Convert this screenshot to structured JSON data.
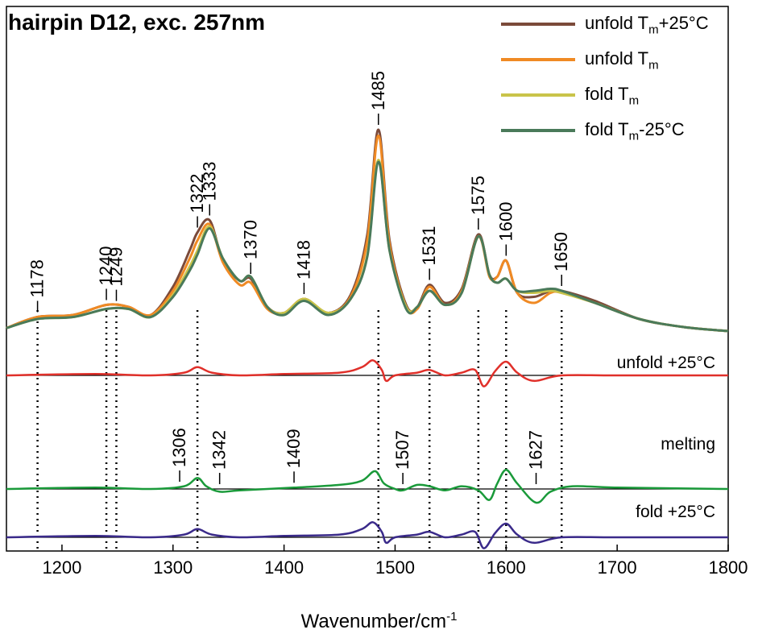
{
  "chart_data": {
    "type": "line",
    "title": "hairpin D12, exc. 257nm",
    "xlabel": "Wavenumber/cm",
    "xlabel_sup": "-1",
    "ylabel": "",
    "xlim": [
      1150,
      1800
    ],
    "xticks": [
      1200,
      1300,
      1400,
      1500,
      1600,
      1700,
      1800
    ],
    "legend_position": "top-right",
    "legend": [
      {
        "label": "unfold T",
        "sub": "m",
        "suffix": "+25°C",
        "color": "#7b4a3a"
      },
      {
        "label": "unfold T",
        "sub": "m",
        "suffix": "",
        "color": "#f08a24"
      },
      {
        "label": "fold T",
        "sub": "m",
        "suffix": "",
        "color": "#c9c44a"
      },
      {
        "label": "fold T",
        "sub": "m",
        "suffix": "-25°C",
        "color": "#4a7a5a"
      }
    ],
    "trace_labels": [
      "unfold +25°C",
      "melting",
      "fold +25°C"
    ],
    "main_series": [
      {
        "name": "unfold Tm+25°C",
        "color": "#7b4a3a",
        "x": [
          1150,
          1178,
          1210,
          1240,
          1260,
          1280,
          1300,
          1315,
          1322,
          1333,
          1345,
          1360,
          1370,
          1385,
          1400,
          1418,
          1440,
          1460,
          1475,
          1485,
          1495,
          1510,
          1520,
          1531,
          1545,
          1560,
          1575,
          1585,
          1592,
          1600,
          1610,
          1625,
          1640,
          1650,
          1680,
          1720,
          1760,
          1800
        ],
        "y": [
          0.015,
          0.07,
          0.08,
          0.13,
          0.12,
          0.08,
          0.22,
          0.4,
          0.49,
          0.55,
          0.35,
          0.25,
          0.26,
          0.12,
          0.09,
          0.16,
          0.09,
          0.18,
          0.48,
          1.0,
          0.45,
          0.13,
          0.12,
          0.23,
          0.14,
          0.21,
          0.48,
          0.28,
          0.27,
          0.35,
          0.19,
          0.17,
          0.2,
          0.2,
          0.15,
          0.06,
          0.02,
          0.0
        ]
      },
      {
        "name": "unfold Tm",
        "color": "#f08a24",
        "x": [
          1150,
          1178,
          1210,
          1240,
          1260,
          1280,
          1300,
          1315,
          1322,
          1333,
          1345,
          1360,
          1370,
          1385,
          1400,
          1418,
          1440,
          1460,
          1475,
          1485,
          1495,
          1510,
          1520,
          1531,
          1545,
          1560,
          1575,
          1585,
          1592,
          1600,
          1610,
          1625,
          1640,
          1650,
          1680,
          1720,
          1760,
          1800
        ],
        "y": [
          0.015,
          0.07,
          0.08,
          0.13,
          0.12,
          0.08,
          0.2,
          0.36,
          0.45,
          0.53,
          0.34,
          0.23,
          0.24,
          0.11,
          0.09,
          0.16,
          0.09,
          0.17,
          0.45,
          0.97,
          0.43,
          0.12,
          0.11,
          0.22,
          0.13,
          0.2,
          0.47,
          0.27,
          0.27,
          0.35,
          0.19,
          0.14,
          0.19,
          0.19,
          0.14,
          0.06,
          0.02,
          0.0
        ]
      },
      {
        "name": "fold Tm",
        "color": "#c9c44a",
        "x": [
          1150,
          1178,
          1210,
          1240,
          1260,
          1280,
          1300,
          1315,
          1322,
          1333,
          1345,
          1360,
          1370,
          1385,
          1400,
          1418,
          1440,
          1460,
          1475,
          1485,
          1495,
          1510,
          1520,
          1531,
          1545,
          1560,
          1575,
          1585,
          1592,
          1600,
          1610,
          1625,
          1640,
          1650,
          1680,
          1720,
          1760,
          1800
        ],
        "y": [
          0.015,
          0.06,
          0.07,
          0.11,
          0.11,
          0.07,
          0.18,
          0.32,
          0.4,
          0.52,
          0.36,
          0.25,
          0.27,
          0.12,
          0.09,
          0.16,
          0.09,
          0.16,
          0.38,
          0.85,
          0.4,
          0.12,
          0.12,
          0.2,
          0.13,
          0.19,
          0.47,
          0.28,
          0.24,
          0.26,
          0.2,
          0.19,
          0.2,
          0.19,
          0.14,
          0.06,
          0.02,
          0.0
        ]
      },
      {
        "name": "fold Tm-25°C",
        "color": "#4a7a5a",
        "x": [
          1150,
          1178,
          1210,
          1240,
          1260,
          1280,
          1300,
          1315,
          1322,
          1333,
          1345,
          1360,
          1370,
          1385,
          1400,
          1418,
          1440,
          1460,
          1475,
          1485,
          1495,
          1510,
          1520,
          1531,
          1545,
          1560,
          1575,
          1585,
          1592,
          1600,
          1610,
          1625,
          1640,
          1650,
          1680,
          1720,
          1760,
          1800
        ],
        "y": [
          0.015,
          0.06,
          0.07,
          0.11,
          0.11,
          0.07,
          0.17,
          0.3,
          0.38,
          0.51,
          0.36,
          0.25,
          0.27,
          0.12,
          0.08,
          0.15,
          0.08,
          0.16,
          0.37,
          0.84,
          0.4,
          0.11,
          0.12,
          0.2,
          0.13,
          0.19,
          0.47,
          0.28,
          0.24,
          0.26,
          0.2,
          0.2,
          0.21,
          0.2,
          0.14,
          0.06,
          0.02,
          0.0
        ]
      }
    ],
    "difference_series": [
      {
        "name": "unfold +25°C",
        "color": "#e0302a",
        "x": [
          1150,
          1230,
          1280,
          1310,
          1322,
          1335,
          1360,
          1400,
          1450,
          1470,
          1480,
          1488,
          1492,
          1500,
          1520,
          1531,
          1545,
          1560,
          1572,
          1580,
          1590,
          1600,
          1610,
          1625,
          1650,
          1700,
          1800
        ],
        "y": [
          0,
          0.005,
          0,
          0.01,
          0.03,
          0.01,
          0,
          0.005,
          0.01,
          0.03,
          0.055,
          0.02,
          -0.02,
          0,
          0.01,
          0.02,
          0,
          0.01,
          0.02,
          -0.04,
          0.015,
          0.05,
          0.01,
          -0.02,
          0,
          0,
          0
        ]
      },
      {
        "name": "melting",
        "color": "#1a9a3a",
        "x": [
          1150,
          1230,
          1280,
          1310,
          1322,
          1330,
          1342,
          1360,
          1409,
          1450,
          1470,
          1482,
          1490,
          1500,
          1507,
          1520,
          1531,
          1545,
          1560,
          1575,
          1585,
          1592,
          1600,
          1610,
          1627,
          1640,
          1660,
          1700,
          1800
        ],
        "y": [
          0,
          0.005,
          0,
          0.01,
          0.04,
          0.01,
          -0.01,
          -0.005,
          0.005,
          0.015,
          0.03,
          0.065,
          0.02,
          0,
          -0.005,
          0.015,
          0.01,
          -0.005,
          0.01,
          -0.005,
          -0.04,
          0.02,
          0.07,
          0.02,
          -0.05,
          -0.01,
          0.01,
          0.005,
          0
        ]
      },
      {
        "name": "fold +25°C",
        "color": "#3a2a8a",
        "x": [
          1150,
          1230,
          1280,
          1310,
          1322,
          1335,
          1360,
          1400,
          1450,
          1470,
          1480,
          1488,
          1492,
          1500,
          1520,
          1531,
          1545,
          1560,
          1572,
          1580,
          1590,
          1600,
          1610,
          1625,
          1650,
          1700,
          1800
        ],
        "y": [
          0,
          0.005,
          0,
          0.01,
          0.03,
          0.01,
          0,
          0.005,
          0.01,
          0.03,
          0.055,
          0.02,
          -0.02,
          0,
          0.01,
          0.02,
          0,
          0.01,
          0.02,
          -0.04,
          0.015,
          0.05,
          0.01,
          -0.02,
          0,
          0,
          0
        ]
      }
    ],
    "peak_labels_main": [
      {
        "x": 1178,
        "label": "1178"
      },
      {
        "x": 1240,
        "label": "1240"
      },
      {
        "x": 1249,
        "label": "1249"
      },
      {
        "x": 1322,
        "label": "1322"
      },
      {
        "x": 1333,
        "label": "1333"
      },
      {
        "x": 1370,
        "label": "1370"
      },
      {
        "x": 1418,
        "label": "1418"
      },
      {
        "x": 1485,
        "label": "1485"
      },
      {
        "x": 1531,
        "label": "1531"
      },
      {
        "x": 1575,
        "label": "1575"
      },
      {
        "x": 1600,
        "label": "1600"
      },
      {
        "x": 1650,
        "label": "1650"
      }
    ],
    "peak_labels_melting": [
      {
        "x": 1306,
        "label": "1306"
      },
      {
        "x": 1342,
        "label": "1342"
      },
      {
        "x": 1409,
        "label": "1409"
      },
      {
        "x": 1507,
        "label": "1507"
      },
      {
        "x": 1627,
        "label": "1627"
      }
    ],
    "dotted_guides": [
      1178,
      1240,
      1249,
      1322,
      1485,
      1531,
      1575,
      1600,
      1650
    ]
  }
}
